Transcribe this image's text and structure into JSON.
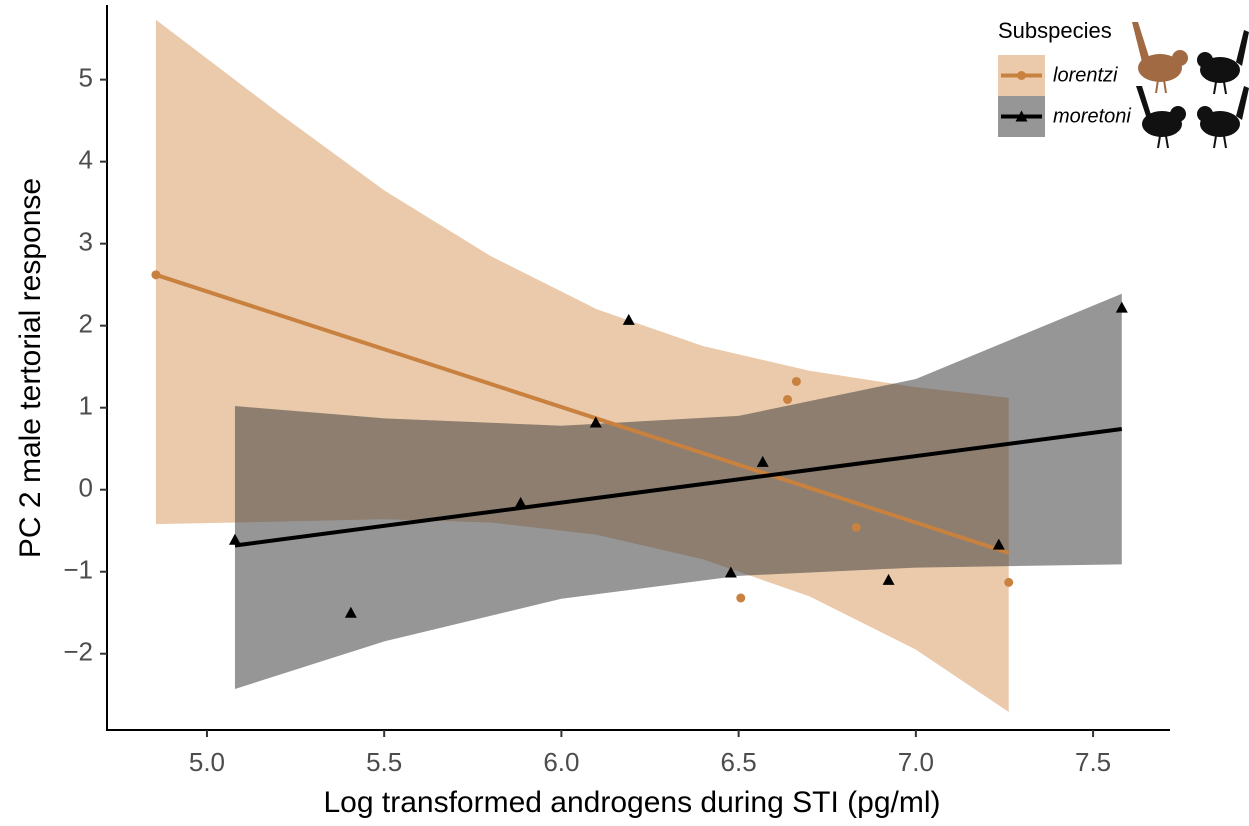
{
  "chart_data": {
    "type": "scatter",
    "x_label": "Log transformed androgens during STI (pg/ml)",
    "y_label": "PC 2 male tertorial response",
    "legend_title": "Subspecies",
    "legend_position": "top-right",
    "xlim": [
      4.718,
      7.717
    ],
    "ylim": [
      -2.93,
      5.91
    ],
    "xticks": [
      {
        "value": 5,
        "label": "5.0"
      },
      5.5,
      {
        "value": 6,
        "label": "6.0"
      },
      6.5,
      {
        "value": 7,
        "label": "7.0"
      },
      7.5
    ],
    "yticks": [
      {
        "value": -2,
        "label": "−2"
      },
      {
        "value": -1,
        "label": "−1"
      },
      0,
      1,
      2,
      3,
      4,
      5
    ],
    "grid": false,
    "series": [
      {
        "name": "lorentzi",
        "color": "#c8813f",
        "band_color": "#dca673",
        "marker": "circle",
        "x": [
          4.856,
          6.638,
          6.663,
          6.832,
          6.506,
          7.262
        ],
        "values": [
          2.62,
          1.1,
          1.32,
          -0.46,
          -1.32,
          -1.13
        ],
        "fit_x": [
          4.856,
          7.262
        ],
        "fit_y": [
          2.62,
          -0.77
        ],
        "band_x": [
          4.856,
          5.2,
          5.5,
          5.8,
          6.1,
          6.4,
          6.7,
          7.0,
          7.262
        ],
        "band_upper": [
          5.73,
          4.6,
          3.65,
          2.85,
          2.2,
          1.75,
          1.45,
          1.25,
          1.12
        ],
        "band_lower": [
          -0.42,
          -0.39,
          -0.36,
          -0.4,
          -0.55,
          -0.85,
          -1.3,
          -1.95,
          -2.71
        ]
      },
      {
        "name": "moretoni",
        "color": "#000000",
        "band_color": "#404040",
        "marker": "triangle",
        "x": [
          5.079,
          5.406,
          5.885,
          6.097,
          6.19,
          6.478,
          6.568,
          6.923,
          7.234,
          7.581
        ],
        "values": [
          -0.61,
          -1.5,
          -0.16,
          0.82,
          2.07,
          -1.01,
          0.34,
          -1.1,
          -0.67,
          2.22
        ],
        "fit_x": [
          5.079,
          7.581
        ],
        "fit_y": [
          -0.68,
          0.74
        ],
        "band_x": [
          5.079,
          5.5,
          6.0,
          6.5,
          7.0,
          7.581
        ],
        "band_upper": [
          1.02,
          0.87,
          0.78,
          0.9,
          1.35,
          2.39
        ],
        "band_lower": [
          -2.43,
          -1.85,
          -1.33,
          -1.05,
          -0.95,
          -0.91
        ]
      }
    ]
  }
}
